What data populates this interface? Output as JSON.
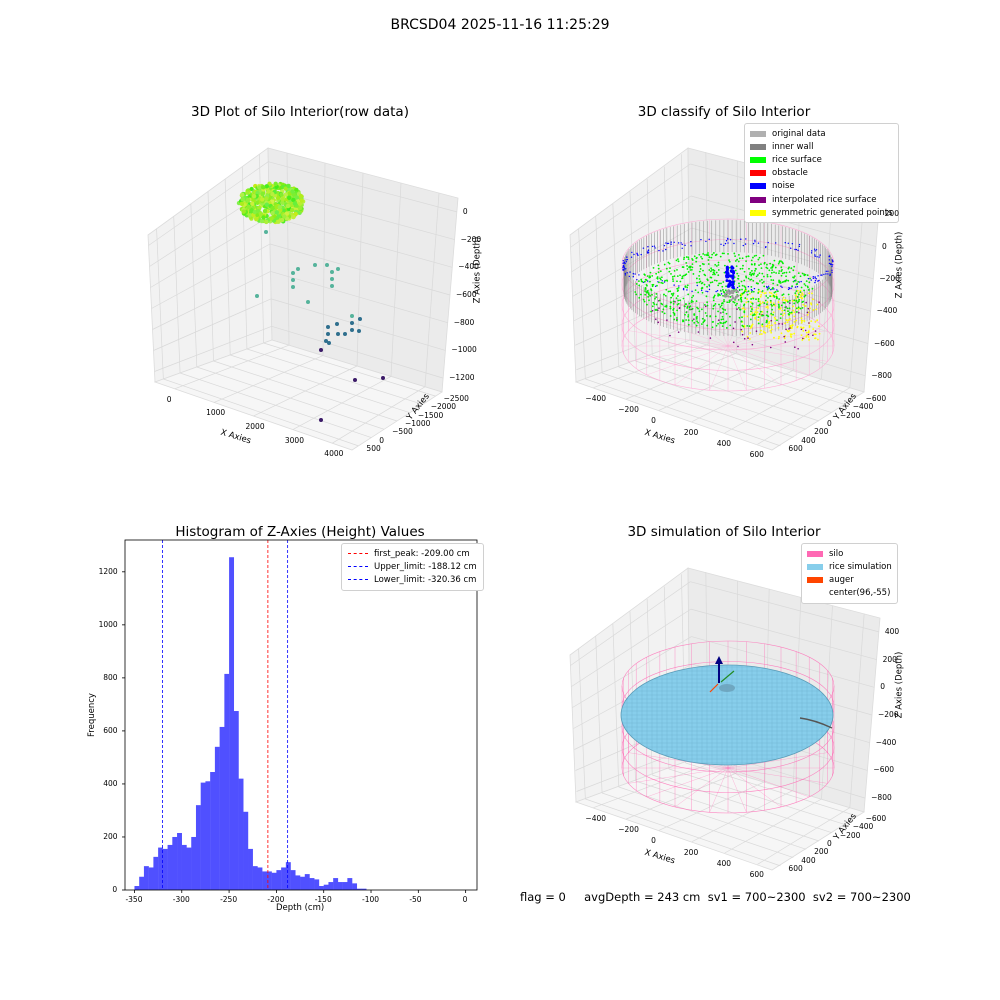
{
  "suptitle": "BRCSD04 2025-11-16 11:25:29",
  "footer": "flag = 0     avgDepth = 243 cm  sv1 = 700~2300  sv2 = 700~2300",
  "colors": {
    "hist_bar": "#5050ff",
    "first_peak": "#ff0000",
    "limits": "#0000ff",
    "silo": "#ff69b4",
    "rice_sim": "#87ceeb",
    "auger": "#ff4500",
    "rice_surface": "#00ff00",
    "noise": "#0000ff",
    "inner_wall": "#808080"
  },
  "panels": {
    "raw": {
      "title": "3D Plot of Silo Interior(row data)",
      "xlabel": "X Axies",
      "ylabel": "Y Axies",
      "zlabel": "Z Axies (Depth)",
      "xticks": [
        "0",
        "1000",
        "2000",
        "3000",
        "4000"
      ],
      "yticks": [
        "500",
        "0",
        "−500",
        "−1000",
        "−1500",
        "−2000",
        "−2500"
      ],
      "zticks": [
        "0",
        "−200",
        "−400",
        "−600",
        "−800",
        "−1000",
        "−1200"
      ]
    },
    "classify": {
      "title": "3D classify of Silo Interior",
      "xlabel": "X Axies",
      "ylabel": "Y Axies",
      "zlabel": "Z Axies (Depth)",
      "xticks": [
        "−400",
        "−200",
        "0",
        "200",
        "400",
        "600"
      ],
      "yticks": [
        "600",
        "400",
        "200",
        "0",
        "−200",
        "−400",
        "−600"
      ],
      "zticks": [
        "200",
        "0",
        "−200",
        "−400",
        "−600",
        "−800"
      ],
      "zticks_top": "00",
      "legend": [
        {
          "label": "original data",
          "color": "#b0b0b0"
        },
        {
          "label": "inner wall",
          "color": "#808080"
        },
        {
          "label": "rice surface",
          "color": "#00ff00"
        },
        {
          "label": "obstacle",
          "color": "#ff0000"
        },
        {
          "label": "noise",
          "color": "#0000ff"
        },
        {
          "label": "interpolated rice surface",
          "color": "#800080"
        },
        {
          "label": "symmetric generated points",
          "color": "#ffff00"
        }
      ]
    },
    "simulation": {
      "title": "3D simulation of Silo Interior",
      "xlabel": "X Axies",
      "ylabel": "Y Axies",
      "zlabel": "Z Axies (Depth)",
      "xticks": [
        "−400",
        "−200",
        "0",
        "200",
        "400",
        "600"
      ],
      "yticks": [
        "600",
        "400",
        "200",
        "0",
        "−200",
        "−400",
        "−600"
      ],
      "zticks": [
        "400",
        "200",
        "0",
        "−200",
        "−400",
        "−600",
        "−800"
      ],
      "legend": [
        {
          "label": "silo",
          "color": "#ff69b4"
        },
        {
          "label": "rice simulation",
          "color": "#87ceeb"
        },
        {
          "label": "auger",
          "color": "#ff4500"
        },
        {
          "label": "center(96,-55)",
          "color": "#ffffff"
        }
      ]
    }
  },
  "chart_data": {
    "type": "bar",
    "title": "Histogram of Z-Axies (Height) Values",
    "xlabel": "Depth (cm)",
    "ylabel": "Frequency",
    "xlim": [
      -360,
      12
    ],
    "ylim": [
      0,
      1320
    ],
    "xticks": [
      -350,
      -300,
      -250,
      -200,
      -150,
      -100,
      -50,
      0
    ],
    "yticks": [
      0,
      200,
      400,
      600,
      800,
      1000,
      1200
    ],
    "bin_edges_start": -350,
    "bin_width": 5,
    "values": [
      15,
      50,
      90,
      85,
      125,
      160,
      155,
      170,
      200,
      215,
      170,
      160,
      200,
      320,
      405,
      410,
      445,
      540,
      615,
      815,
      1255,
      675,
      420,
      295,
      155,
      90,
      85,
      70,
      70,
      65,
      75,
      85,
      105,
      75,
      55,
      50,
      60,
      45,
      40,
      15,
      20,
      30,
      45,
      30,
      30,
      45,
      25,
      5,
      5,
      0
    ],
    "vlines": [
      {
        "name": "first_peak",
        "x": -209.0,
        "label": "first_peak: -209.00 cm",
        "color": "#ff0000"
      },
      {
        "name": "upper-limit",
        "x": -188.12,
        "label": "Upper_limit: -188.12 cm",
        "color": "#0000ff"
      },
      {
        "name": "lower-limit",
        "x": -320.36,
        "label": "Lower_limit: -320.36 cm",
        "color": "#0000ff"
      }
    ],
    "legend_position": "upper right",
    "grid": false
  }
}
